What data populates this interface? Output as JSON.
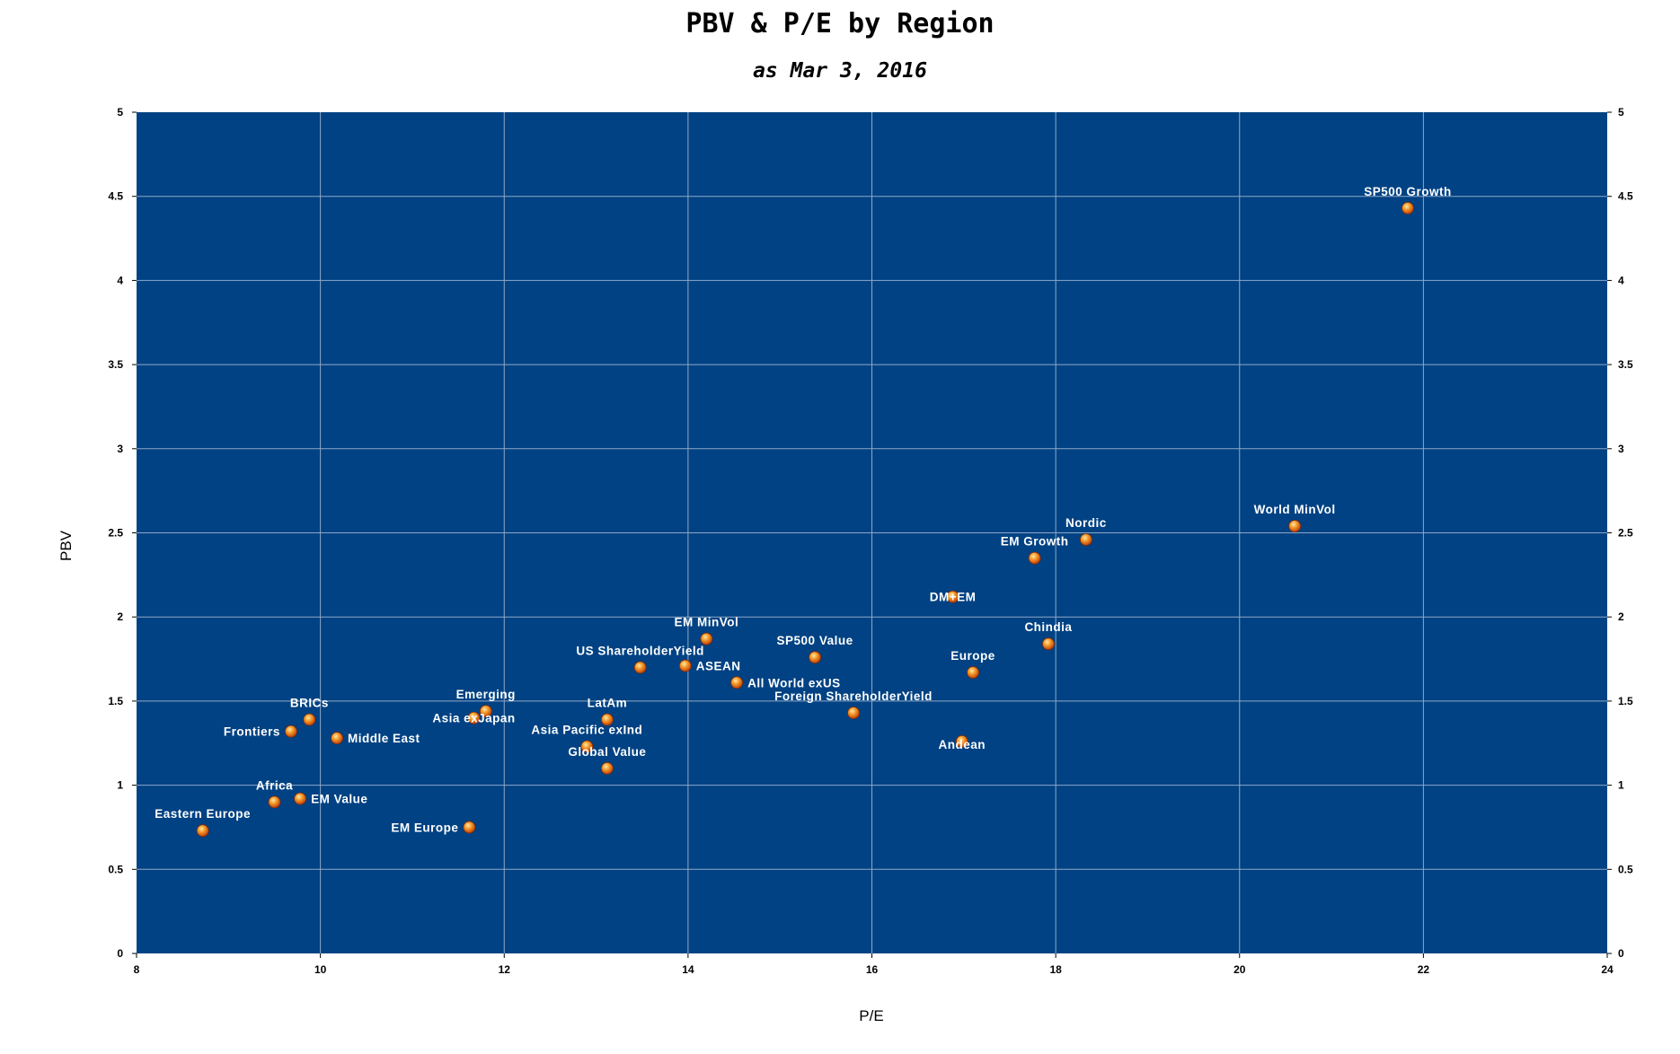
{
  "chart_data": {
    "type": "scatter",
    "title": "PBV & P/E by Region",
    "subtitle": "as Mar 3, 2016",
    "xlabel": "P/E",
    "ylabel": "PBV",
    "xlim": [
      8,
      24
    ],
    "ylim": [
      0,
      5
    ],
    "x_ticks": [
      "8",
      "10",
      "12",
      "14",
      "16",
      "18",
      "20",
      "22",
      "24"
    ],
    "y_ticks": [
      "0",
      "0.5",
      "1",
      "1.5",
      "2",
      "2.5",
      "3",
      "3.5",
      "4",
      "4.5",
      "5"
    ],
    "grid": true,
    "secondary_y_axis": true,
    "colors": {
      "plot_background": "#004283",
      "grid": "#8fa8c8",
      "marker": "#e8731c",
      "label": "#ffffff"
    },
    "points": [
      {
        "label": "SP500 Growth",
        "x": 21.83,
        "y": 4.43,
        "pos": "above"
      },
      {
        "label": "World MinVol",
        "x": 20.6,
        "y": 2.54,
        "pos": "above"
      },
      {
        "label": "Nordic",
        "x": 18.33,
        "y": 2.46,
        "pos": "above"
      },
      {
        "label": "EM Growth",
        "x": 17.77,
        "y": 2.35,
        "pos": "above"
      },
      {
        "label": "DM+EM",
        "x": 16.88,
        "y": 2.12,
        "pos": "on"
      },
      {
        "label": "Chindia",
        "x": 17.92,
        "y": 1.84,
        "pos": "above"
      },
      {
        "label": "Europe",
        "x": 17.1,
        "y": 1.67,
        "pos": "above"
      },
      {
        "label": "Andean",
        "x": 16.98,
        "y": 1.26,
        "pos": "below"
      },
      {
        "label": "Foreign ShareholderYield",
        "x": 15.8,
        "y": 1.43,
        "pos": "above"
      },
      {
        "label": "SP500 Value",
        "x": 15.38,
        "y": 1.76,
        "pos": "above"
      },
      {
        "label": "All World exUS",
        "x": 14.53,
        "y": 1.61,
        "pos": "right"
      },
      {
        "label": "EM MinVol",
        "x": 14.2,
        "y": 1.87,
        "pos": "above"
      },
      {
        "label": "ASEAN",
        "x": 13.97,
        "y": 1.71,
        "pos": "right"
      },
      {
        "label": "US ShareholderYield",
        "x": 13.48,
        "y": 1.7,
        "pos": "above"
      },
      {
        "label": "LatAm",
        "x": 13.12,
        "y": 1.39,
        "pos": "above"
      },
      {
        "label": "Asia Pacific exInd",
        "x": 12.9,
        "y": 1.23,
        "pos": "above"
      },
      {
        "label": "Global Value",
        "x": 13.12,
        "y": 1.1,
        "pos": "above"
      },
      {
        "label": "Emerging",
        "x": 11.8,
        "y": 1.44,
        "pos": "above"
      },
      {
        "label": "Asia exJapan",
        "x": 11.67,
        "y": 1.4,
        "pos": "on"
      },
      {
        "label": "EM Europe",
        "x": 11.62,
        "y": 0.75,
        "pos": "left"
      },
      {
        "label": "BRICs",
        "x": 9.88,
        "y": 1.39,
        "pos": "above"
      },
      {
        "label": "Frontiers",
        "x": 9.68,
        "y": 1.32,
        "pos": "left"
      },
      {
        "label": "Middle East",
        "x": 10.18,
        "y": 1.28,
        "pos": "right"
      },
      {
        "label": "Africa",
        "x": 9.5,
        "y": 0.9,
        "pos": "above"
      },
      {
        "label": "EM Value",
        "x": 9.78,
        "y": 0.92,
        "pos": "right"
      },
      {
        "label": "Eastern Europe",
        "x": 8.72,
        "y": 0.73,
        "pos": "above"
      }
    ]
  }
}
